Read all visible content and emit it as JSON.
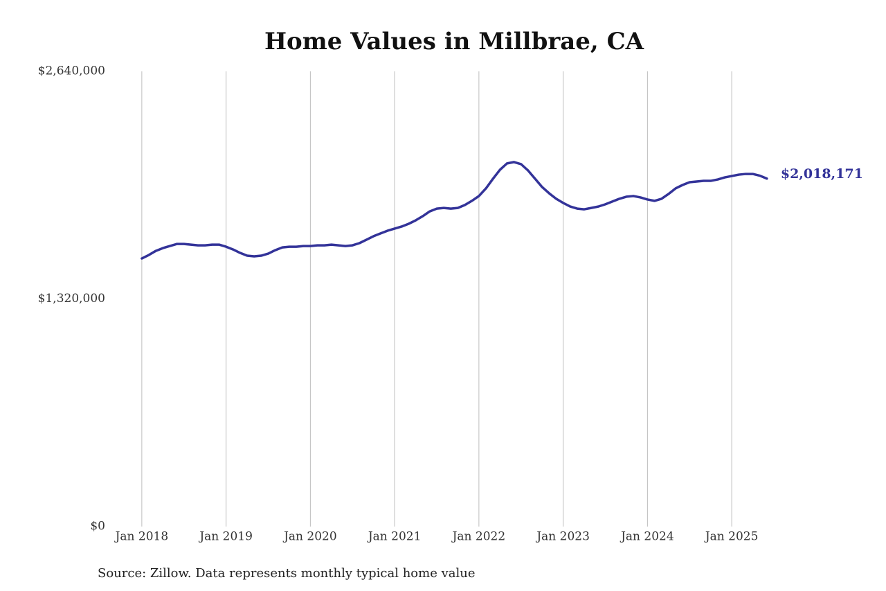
{
  "chart_data": {
    "type": "line",
    "title": "Home Values in Millbrae, CA",
    "source": "Source: Zillow. Data represents monthly typical home value",
    "x": [
      "2018-01",
      "2018-02",
      "2018-03",
      "2018-04",
      "2018-05",
      "2018-06",
      "2018-07",
      "2018-08",
      "2018-09",
      "2018-10",
      "2018-11",
      "2018-12",
      "2019-01",
      "2019-02",
      "2019-03",
      "2019-04",
      "2019-05",
      "2019-06",
      "2019-07",
      "2019-08",
      "2019-09",
      "2019-10",
      "2019-11",
      "2019-12",
      "2020-01",
      "2020-02",
      "2020-03",
      "2020-04",
      "2020-05",
      "2020-06",
      "2020-07",
      "2020-08",
      "2020-09",
      "2020-10",
      "2020-11",
      "2020-12",
      "2021-01",
      "2021-02",
      "2021-03",
      "2021-04",
      "2021-05",
      "2021-06",
      "2021-07",
      "2021-08",
      "2021-09",
      "2021-10",
      "2021-11",
      "2021-12",
      "2022-01",
      "2022-02",
      "2022-03",
      "2022-04",
      "2022-05",
      "2022-06",
      "2022-07",
      "2022-08",
      "2022-09",
      "2022-10",
      "2022-11",
      "2022-12",
      "2023-01",
      "2023-02",
      "2023-03",
      "2023-04",
      "2023-05",
      "2023-06",
      "2023-07",
      "2023-08",
      "2023-09",
      "2023-10",
      "2023-11",
      "2023-12",
      "2024-01",
      "2024-02",
      "2024-03",
      "2024-04",
      "2024-05",
      "2024-06",
      "2024-07",
      "2024-08",
      "2024-09",
      "2024-10",
      "2024-11",
      "2024-12",
      "2025-01",
      "2025-02",
      "2025-03",
      "2025-04",
      "2025-05",
      "2025-06"
    ],
    "series": [
      {
        "name": "Typical home value",
        "color": "#333399",
        "values": [
          1555000,
          1575000,
          1599000,
          1615000,
          1627000,
          1639000,
          1639000,
          1635000,
          1631000,
          1631000,
          1635000,
          1635000,
          1623000,
          1607000,
          1587000,
          1571000,
          1567000,
          1571000,
          1583000,
          1603000,
          1619000,
          1623000,
          1623000,
          1627000,
          1627000,
          1631000,
          1631000,
          1635000,
          1631000,
          1627000,
          1631000,
          1644000,
          1664000,
          1684000,
          1700000,
          1716000,
          1728000,
          1740000,
          1756000,
          1776000,
          1800000,
          1828000,
          1844000,
          1848000,
          1844000,
          1848000,
          1865000,
          1889000,
          1917000,
          1961000,
          2017000,
          2069000,
          2106000,
          2114000,
          2102000,
          2065000,
          2017000,
          1969000,
          1933000,
          1901000,
          1877000,
          1856000,
          1844000,
          1840000,
          1848000,
          1856000,
          1869000,
          1885000,
          1901000,
          1913000,
          1917000,
          1909000,
          1897000,
          1889000,
          1901000,
          1929000,
          1961000,
          1981000,
          1997000,
          2001000,
          2005000,
          2005000,
          2013000,
          2025000,
          2033000,
          2041000,
          2045000,
          2045000,
          2035000,
          2018171
        ]
      }
    ],
    "annotations": [
      {
        "x": "2025-06",
        "value": 2018171,
        "label": "$2,018,171"
      }
    ],
    "xlim": [
      "2017-07",
      "2025-07"
    ],
    "xticks": [
      {
        "value": "2018-01",
        "label": "Jan 2018"
      },
      {
        "value": "2019-01",
        "label": "Jan 2019"
      },
      {
        "value": "2020-01",
        "label": "Jan 2020"
      },
      {
        "value": "2021-01",
        "label": "Jan 2021"
      },
      {
        "value": "2022-01",
        "label": "Jan 2022"
      },
      {
        "value": "2023-01",
        "label": "Jan 2023"
      },
      {
        "value": "2024-01",
        "label": "Jan 2024"
      },
      {
        "value": "2025-01",
        "label": "Jan 2025"
      }
    ],
    "ylim": [
      0,
      2640000
    ],
    "yticks": [
      {
        "value": 0,
        "label": "$0"
      },
      {
        "value": 1320000,
        "label": "$1,320,000"
      },
      {
        "value": 2640000,
        "label": "$2,640,000"
      }
    ],
    "grid": "x"
  }
}
